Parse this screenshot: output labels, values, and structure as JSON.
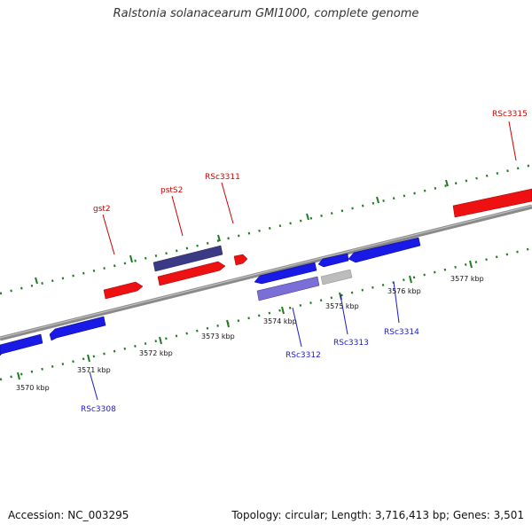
{
  "title": "Ralstonia solanacearum GMI1000, complete genome",
  "footer": {
    "accession": "Accession: NC_003295",
    "summary": "Topology: circular; Length: 3,716,413 bp; Genes: 3,501"
  },
  "colors": {
    "backbone": "#8a8a8a",
    "ticks": "#1f7a1f",
    "forward_gene": "#ee1111",
    "reverse_gene": "#1a1ae6",
    "forward_label": "#cc0000",
    "reverse_label": "#1a1acc",
    "dark_gene": "#3b3a85",
    "light_gene": "#7a6fd6",
    "grey_gene": "#bcbcbc"
  },
  "scale": {
    "labels": [
      "3570 kbp",
      "3571 kbp",
      "3572 kbp",
      "3573 kbp",
      "3574 kbp",
      "3575 kbp",
      "3576 kbp",
      "3577 kbp"
    ]
  },
  "gene_labels": {
    "top": [
      "gst2",
      "pstS2",
      "RSc3311",
      "RSc3315"
    ],
    "bottom": [
      "RSc3308",
      "RSc3312",
      "RSc3313",
      "RSc3314"
    ]
  }
}
